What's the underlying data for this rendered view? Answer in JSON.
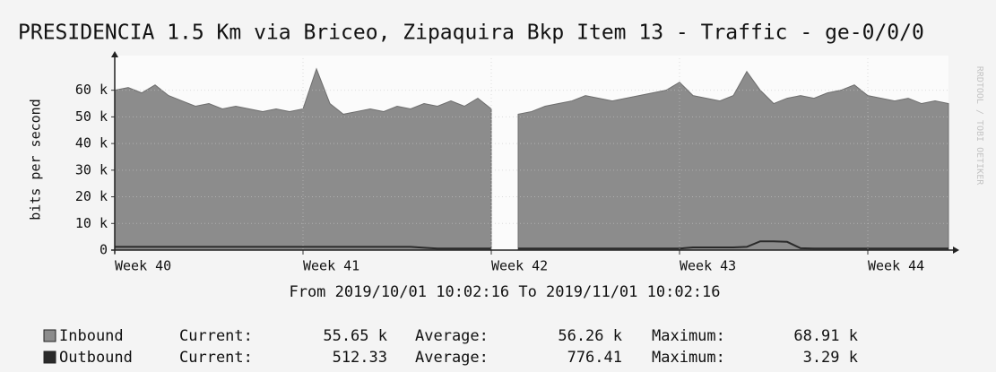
{
  "chart_data": {
    "type": "area",
    "title": "PRESIDENCIA 1.5 Km via Briceo, Zipaquira Bkp Item 13 - Traffic - ge-0/0/0",
    "y_label": "bits per second",
    "x_label": "From 2019/10/01 10:02:16 To 2019/11/01 10:02:16",
    "watermark": "RRDTOOL / TOBI OETIKER",
    "x": [
      0,
      0.5,
      1,
      1.5,
      2,
      2.5,
      3,
      3.5,
      4,
      4.5,
      5,
      5.5,
      6,
      6.5,
      7,
      7.5,
      8,
      8.5,
      9,
      9.5,
      10,
      10.5,
      11,
      11.5,
      12,
      12.5,
      13,
      13.5,
      14,
      14.5,
      15,
      15.5,
      16,
      16.5,
      17,
      17.5,
      18,
      18.5,
      19,
      19.5,
      20,
      20.5,
      21,
      21.5,
      22,
      22.5,
      23,
      23.5,
      24,
      24.5,
      25,
      25.5,
      26,
      26.5,
      27,
      27.5,
      28,
      28.5,
      29,
      29.5,
      30,
      30.5,
      31
    ],
    "xlim": [
      0,
      31
    ],
    "xticks": [
      {
        "value": 0,
        "label": "Week 40"
      },
      {
        "value": 7,
        "label": "Week 41"
      },
      {
        "value": 14,
        "label": "Week 42"
      },
      {
        "value": 21,
        "label": "Week 43"
      },
      {
        "value": 28,
        "label": "Week 44"
      }
    ],
    "ylim": [
      0,
      72000
    ],
    "yticks": [
      0,
      {
        "value": 10000,
        "label": "10 k"
      },
      {
        "value": 20000,
        "label": "20 k"
      },
      {
        "value": 30000,
        "label": "30 k"
      },
      {
        "value": 40000,
        "label": "40 k"
      },
      {
        "value": 50000,
        "label": "50 k"
      },
      {
        "value": 60000,
        "label": "60 k"
      }
    ],
    "grid": true,
    "stats_labels": [
      "Current:",
      "Average:",
      "Maximum:"
    ],
    "series": [
      {
        "name": "Inbound",
        "color": "#8c8c8c",
        "values": [
          60000,
          61000,
          59000,
          62000,
          58000,
          56000,
          54000,
          55000,
          53000,
          54000,
          53000,
          52000,
          53000,
          52000,
          53000,
          68000,
          55000,
          51000,
          52000,
          53000,
          52000,
          54000,
          53000,
          55000,
          54000,
          56000,
          54000,
          57000,
          53000,
          null,
          51000,
          52000,
          54000,
          55000,
          56000,
          58000,
          57000,
          56000,
          57000,
          58000,
          59000,
          60000,
          63000,
          58000,
          57000,
          56000,
          58000,
          67000,
          60000,
          55000,
          57000,
          58000,
          57000,
          59000,
          60000,
          62000,
          58000,
          57000,
          56000,
          57000,
          55000,
          56000,
          55000
        ],
        "stats": [
          {
            "value": 55650,
            "label": "55.65 k"
          },
          {
            "value": 56260,
            "label": "56.26 k"
          },
          {
            "value": 68910,
            "label": "68.91 k"
          }
        ]
      },
      {
        "name": "Outbound",
        "color": "#2a2a2a",
        "values": [
          1200,
          1200,
          1200,
          1200,
          1200,
          1200,
          1200,
          1200,
          1200,
          1200,
          1200,
          1200,
          1200,
          1200,
          1200,
          1200,
          1200,
          1200,
          1200,
          1200,
          1200,
          1200,
          1200,
          900,
          600,
          600,
          600,
          600,
          600,
          null,
          600,
          600,
          600,
          600,
          600,
          600,
          600,
          600,
          600,
          600,
          600,
          600,
          600,
          1000,
          1000,
          1000,
          1000,
          1200,
          3290,
          3300,
          3100,
          700,
          600,
          600,
          600,
          600,
          600,
          600,
          600,
          600,
          600,
          600,
          600
        ],
        "stats": [
          512.33,
          776.41,
          {
            "value": 3290,
            "label": "3.29 k"
          }
        ]
      }
    ]
  }
}
